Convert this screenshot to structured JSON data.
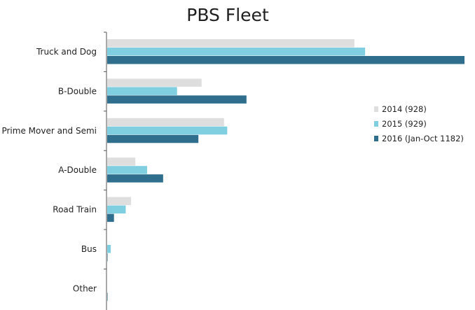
{
  "chart_data": {
    "type": "bar",
    "orientation": "horizontal",
    "title": "PBS Fleet",
    "xlabel": "",
    "ylabel": "",
    "xlim": [
      0,
      335
    ],
    "grid": false,
    "legend_position": "right",
    "categories": [
      "Truck and Dog",
      "B-Double",
      "Prime Mover and Semi",
      "A-Double",
      "Road Train",
      "Bus",
      "Other"
    ],
    "series": [
      {
        "name": "2014 (928)",
        "color": "#dedede",
        "values": [
          232,
          89,
          110,
          27,
          23,
          0,
          0
        ]
      },
      {
        "name": "2015 (929)",
        "color": "#7fcfe0",
        "values": [
          242,
          66,
          113,
          38,
          18,
          4,
          0
        ]
      },
      {
        "name": "2016 (Jan-Oct 1182)",
        "color": "#2f6e8c",
        "values": [
          335,
          131,
          86,
          53,
          7,
          1,
          1
        ]
      }
    ]
  }
}
